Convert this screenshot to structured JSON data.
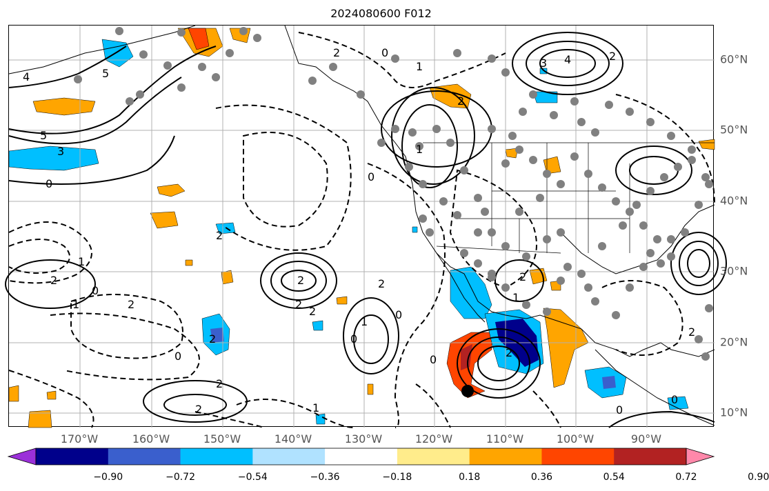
{
  "title": "2024080600 F012",
  "lon_labels": [
    "170°W",
    "160°W",
    "150°W",
    "140°W",
    "130°W",
    "120°W",
    "110°W",
    "100°W",
    "90°W"
  ],
  "lat_labels": [
    "60°N",
    "50°N",
    "40°N",
    "30°N",
    "20°N",
    "10°N"
  ],
  "colorbar": {
    "ticks": [
      "−0.90",
      "−0.72",
      "−0.54",
      "−0.36",
      "−0.18",
      "0.18",
      "0.36",
      "0.54",
      "0.72",
      "0.90"
    ],
    "colors": [
      "#9b30d9",
      "#00008b",
      "#3a5fcd",
      "#00bfff",
      "#b0e2ff",
      "#ffffff",
      "#ffec8b",
      "#ffa500",
      "#ff4500",
      "#b22222",
      "#ff88aa"
    ]
  },
  "contour_labels": [
    "4",
    "5",
    "5",
    "3",
    "0",
    "2",
    "1",
    "2",
    "1",
    "0",
    "2",
    "0",
    "2",
    "2",
    "2",
    "1",
    "0",
    "2",
    "2",
    "0",
    "0",
    "1",
    "2",
    "2",
    "4",
    "2",
    "3",
    "2",
    "1",
    "2",
    "0",
    "2",
    "1",
    "1",
    "0",
    "2",
    "2",
    "0",
    "0"
  ],
  "colors": {
    "positive_shade": "#ffa500",
    "negative_shade": "#00bfff",
    "strong_negative": "#00008b",
    "strong_positive": "#ff4500",
    "station_dot": "#808080"
  }
}
